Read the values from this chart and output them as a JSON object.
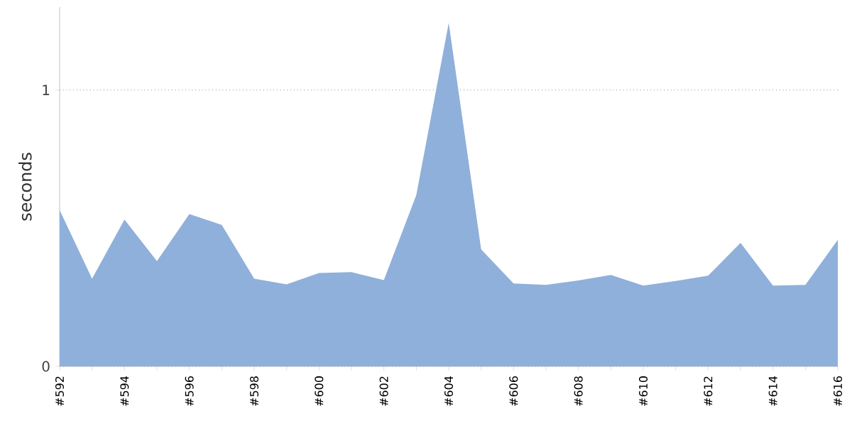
{
  "chart_data": {
    "type": "area",
    "ylabel": "seconds",
    "categories": [
      "#592",
      null,
      "#594",
      null,
      "#596",
      null,
      "#598",
      null,
      "#600",
      null,
      "#602",
      null,
      "#604",
      null,
      "#606",
      null,
      "#608",
      null,
      "#610",
      null,
      "#612",
      null,
      "#614",
      null,
      "#616"
    ],
    "values": [
      0.565,
      0.317,
      0.531,
      0.381,
      0.551,
      0.512,
      0.317,
      0.297,
      0.338,
      0.341,
      0.312,
      0.62,
      1.243,
      0.423,
      0.3,
      0.295,
      0.311,
      0.331,
      0.292,
      0.309,
      0.328,
      0.447,
      0.292,
      0.295,
      0.458
    ],
    "color": "#8fb0da",
    "ylim": [
      0,
      1.3
    ],
    "yticks": [
      0,
      1
    ],
    "grid": "y"
  }
}
